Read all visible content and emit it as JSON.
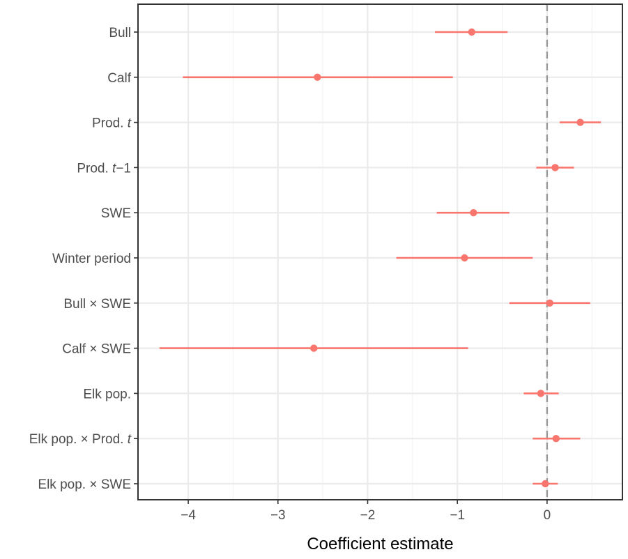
{
  "chart_data": {
    "type": "forest",
    "xlabel": "Coefficient estimate",
    "ylabel": "",
    "xlim": [
      -4.56,
      0.84
    ],
    "x_ticks": [
      -4,
      -3,
      -2,
      -1,
      0
    ],
    "x_tick_labels": [
      "−4",
      "−3",
      "−2",
      "−1",
      "0"
    ],
    "reference_line": {
      "x": 0,
      "style": "dashed"
    },
    "grid": true,
    "legend": "none",
    "point_color": "#F8766D",
    "categories": [
      {
        "label": "Bull",
        "label_italic": ""
      },
      {
        "label": "Calf",
        "label_italic": ""
      },
      {
        "label": "Prod. ",
        "label_italic": "t"
      },
      {
        "label": "Prod. ",
        "label_italic": "t",
        "label_suffix": "−1"
      },
      {
        "label": "SWE",
        "label_italic": ""
      },
      {
        "label": "Winter period",
        "label_italic": ""
      },
      {
        "label": "Bull × SWE",
        "label_italic": ""
      },
      {
        "label": "Calf × SWE",
        "label_italic": ""
      },
      {
        "label": "Elk pop.",
        "label_italic": ""
      },
      {
        "label": "Elk pop. × Prod. ",
        "label_italic": "t"
      },
      {
        "label": "Elk pop. × SWE",
        "label_italic": ""
      }
    ],
    "estimates": [
      -0.84,
      -2.56,
      0.37,
      0.09,
      -0.82,
      -0.92,
      0.03,
      -2.6,
      -0.07,
      0.1,
      -0.02
    ],
    "lower": [
      -1.25,
      -4.06,
      0.14,
      -0.12,
      -1.23,
      -1.68,
      -0.42,
      -4.32,
      -0.26,
      -0.16,
      -0.16
    ],
    "upper": [
      -0.44,
      -1.05,
      0.6,
      0.3,
      -0.42,
      -0.16,
      0.48,
      -0.88,
      0.13,
      0.37,
      0.12
    ]
  }
}
